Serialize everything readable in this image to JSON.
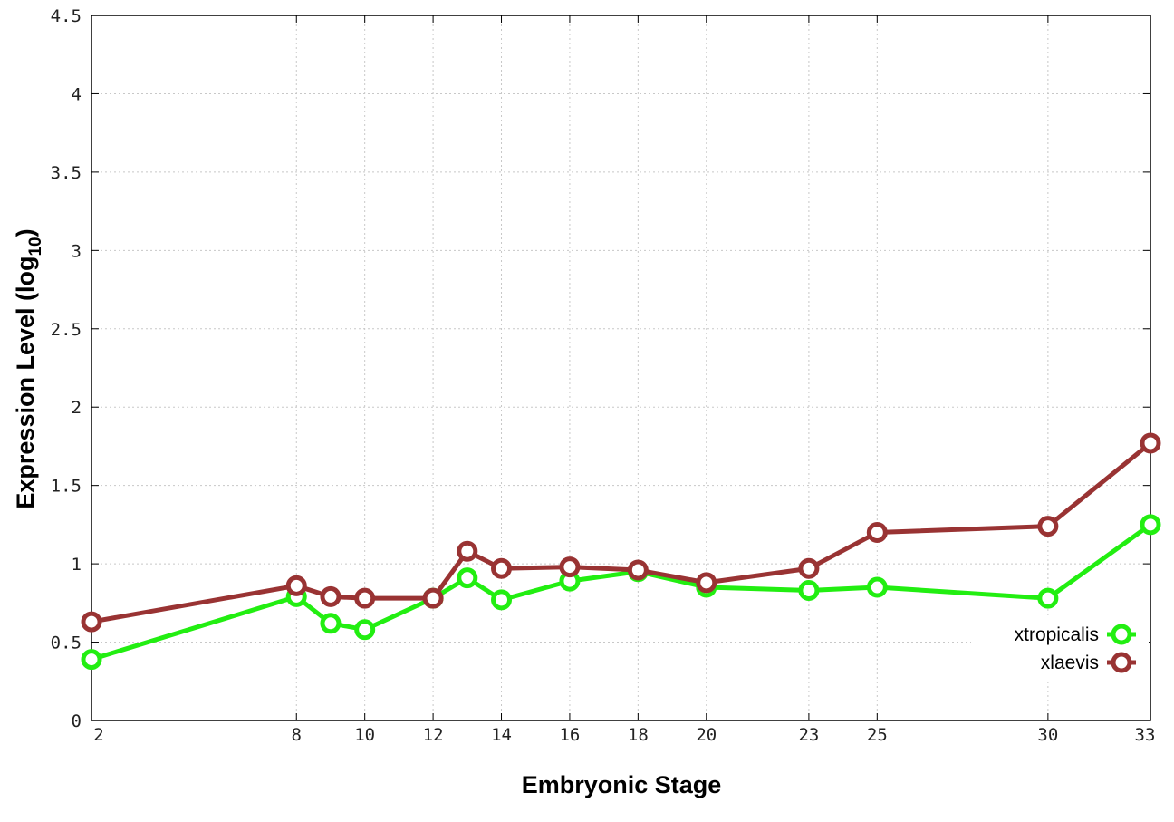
{
  "chart_data": {
    "type": "line",
    "title": "",
    "xlabel": "Embryonic Stage",
    "ylabel": "Expression Level (log",
    "ylabel_subscript": "10",
    "ylabel_suffix": ")",
    "xlim": [
      2,
      33
    ],
    "ylim": [
      0,
      4.5
    ],
    "x_ticks": [
      2,
      8,
      10,
      12,
      14,
      16,
      18,
      20,
      23,
      25,
      30,
      33
    ],
    "y_ticks": [
      0,
      0.5,
      1,
      1.5,
      2,
      2.5,
      3,
      3.5,
      4,
      4.5
    ],
    "y_tick_labels": [
      "0",
      "0.5",
      "1",
      "1.5",
      "2",
      "2.5",
      "3",
      "3.5",
      "4",
      "4.5"
    ],
    "grid": true,
    "legend_position": "bottom-right",
    "x": [
      2,
      8,
      9,
      10,
      12,
      13,
      14,
      16,
      18,
      20,
      23,
      25,
      30,
      33
    ],
    "series": [
      {
        "name": "xtropicalis",
        "color": "#22ee11",
        "values": [
          0.39,
          0.79,
          0.62,
          0.58,
          0.78,
          0.91,
          0.77,
          0.89,
          0.95,
          0.85,
          0.83,
          0.85,
          0.78,
          1.25
        ]
      },
      {
        "name": "xlaevis",
        "color": "#993333",
        "values": [
          0.63,
          0.86,
          0.79,
          0.78,
          0.78,
          1.08,
          0.97,
          0.98,
          0.96,
          0.88,
          0.97,
          1.2,
          1.24,
          1.77
        ]
      }
    ]
  }
}
